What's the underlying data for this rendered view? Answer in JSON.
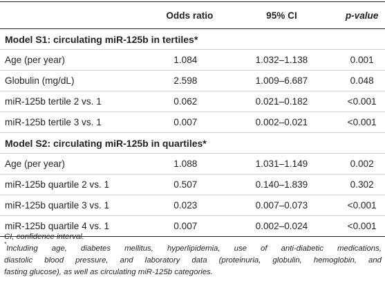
{
  "table": {
    "headers": [
      "",
      "Odds ratio",
      "95% CI",
      "p-value"
    ],
    "sections": [
      {
        "title": "Model S1: circulating miR-125b in tertiles*",
        "rows": [
          [
            "Age (per year)",
            "1.084",
            "1.032–1.138",
            "0.001"
          ],
          [
            "Globulin (mg/dL)",
            "2.598",
            "1.009–6.687",
            "0.048"
          ],
          [
            "miR-125b tertile 2 vs. 1",
            "0.062",
            "0.021–0.182",
            "<0.001"
          ],
          [
            "miR-125b tertile 3 vs. 1",
            "0.007",
            "0.002–0.021",
            "<0.001"
          ]
        ]
      },
      {
        "title": "Model S2: circulating miR-125b in quartiles*",
        "rows": [
          [
            "Age (per year)",
            "1.088",
            "1.031–1.149",
            "0.002"
          ],
          [
            "miR-125b quartile 2 vs. 1",
            "0.507",
            "0.140–1.839",
            "0.302"
          ],
          [
            "miR-125b quartile 3 vs. 1",
            "0.023",
            "0.007–0.073",
            "<0.001"
          ],
          [
            "miR-125b quartile 4 vs. 1",
            "0.007",
            "0.002–0.024",
            "<0.001"
          ]
        ]
      }
    ]
  },
  "footnotes": {
    "abbreviation": "CI, confidence interval.",
    "marker": "*",
    "line1": "Including age, diabetes mellitus, hyperlipidemia, use of anti-diabetic medications,",
    "line2": "diastolic blood pressure, and laboratory data (proteinuria, globulin, hemoglobin, and",
    "line3": "fasting glucose), as well as circulating miR-125b categories."
  }
}
